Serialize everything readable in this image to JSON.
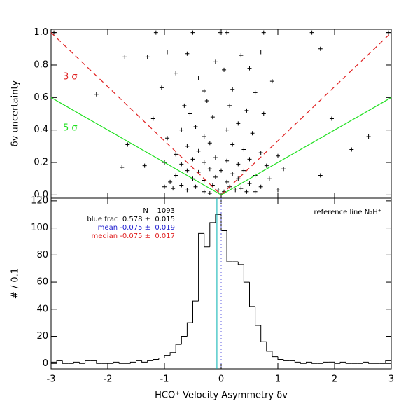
{
  "chart_data": [
    {
      "type": "scatter",
      "y_label": "δv uncertainty",
      "xlim": [
        -3,
        3
      ],
      "ylim": [
        -0.02,
        1.02
      ],
      "yticks": [
        {
          "value": 0,
          "label": "0.0"
        },
        0.2,
        0.4,
        0.6,
        0.8,
        {
          "value": 1,
          "label": "1.0"
        }
      ],
      "color": "#000000",
      "x": [
        -2.95,
        -1.15,
        -0.5,
        -0.02,
        0.1,
        0.75,
        1.6,
        2.95,
        -0.95,
        -1.3,
        -0.6,
        0.7,
        1.75,
        -0.1,
        0.35,
        -1.7,
        -0.8,
        -0.4,
        0.5,
        0.05,
        0.9,
        -2.2,
        -1.05,
        0.2,
        -0.3,
        0.6,
        -0.65,
        -0.25,
        0.15,
        0.45,
        -0.55,
        0.75,
        -1.2,
        1.95,
        -0.15,
        -0.45,
        0.3,
        -0.7,
        0.55,
        0.1,
        -0.3,
        2.6,
        -0.95,
        -0.6,
        -0.2,
        0.2,
        0.4,
        -0.4,
        0.7,
        -0.8,
        1.0,
        -1.65,
        2.3,
        -0.5,
        -0.3,
        -0.1,
        0.1,
        0.3,
        0.5,
        -0.7,
        0.8,
        -1.0,
        -1.35,
        1.1,
        -1.75,
        1.75,
        -0.6,
        -0.4,
        -0.2,
        0,
        0.2,
        0.4,
        0.6,
        -0.8,
        0.85,
        -0.9,
        -0.5,
        -0.3,
        -0.1,
        0.1,
        0.3,
        0.5,
        -0.7,
        0.7,
        -0.45,
        -0.15,
        0.15,
        0.35,
        -0.6,
        -0.3,
        -0.05,
        0.05,
        0.25,
        -0.2,
        0.45,
        -0.85,
        0.6,
        -1.0,
        1.0
      ],
      "values": [
        1,
        1,
        1,
        1,
        1,
        1,
        1,
        1,
        0.88,
        0.85,
        0.87,
        0.88,
        0.9,
        0.82,
        0.86,
        0.85,
        0.75,
        0.72,
        0.78,
        0.77,
        0.7,
        0.62,
        0.66,
        0.65,
        0.64,
        0.63,
        0.55,
        0.58,
        0.55,
        0.52,
        0.5,
        0.5,
        0.47,
        0.47,
        0.48,
        0.42,
        0.44,
        0.4,
        0.38,
        0.4,
        0.36,
        0.36,
        0.35,
        0.3,
        0.32,
        0.31,
        0.28,
        0.27,
        0.26,
        0.25,
        0.24,
        0.31,
        0.28,
        0.22,
        0.2,
        0.23,
        0.21,
        0.19,
        0.22,
        0.19,
        0.18,
        0.2,
        0.18,
        0.16,
        0.17,
        0.12,
        0.15,
        0.14,
        0.16,
        0.15,
        0.13,
        0.15,
        0.12,
        0.12,
        0.1,
        0.08,
        0.1,
        0.09,
        0.11,
        0.08,
        0.1,
        0.07,
        0.06,
        0.05,
        0.05,
        0.06,
        0.05,
        0.04,
        0.03,
        0.02,
        0.03,
        0.02,
        0.03,
        0.01,
        0.02,
        0.04,
        0.02,
        0.05,
        0.03
      ],
      "lines": [
        {
          "label": "3 σ",
          "color": "#e02020",
          "dashed": true,
          "x": [
            -3,
            0,
            3
          ],
          "y": [
            1,
            0,
            1
          ]
        },
        {
          "label": "5 σ",
          "color": "#20e020",
          "dashed": false,
          "x": [
            -3,
            0,
            3
          ],
          "y": [
            0.6,
            0,
            0.6
          ]
        }
      ]
    },
    {
      "type": "histogram",
      "x_label": "HCO⁺ Velocity Asymmetry δv",
      "y_label": "# / 0.1",
      "xlim": [
        -3,
        3
      ],
      "ylim": [
        -4,
        122
      ],
      "xticks": [
        -3,
        -2,
        -1,
        0,
        1,
        2,
        3
      ],
      "yticks": [
        0,
        20,
        40,
        60,
        80,
        100,
        120
      ],
      "color": "#000000",
      "bins": [
        -3,
        -2.9,
        -2.8,
        -2.7,
        -2.6,
        -2.5,
        -2.4,
        -2.3,
        -2.2,
        -2.1,
        -2,
        -1.9,
        -1.8,
        -1.7,
        -1.6,
        -1.5,
        -1.4,
        -1.3,
        -1.2,
        -1.1,
        -1,
        -0.9,
        -0.8,
        -0.7,
        -0.6,
        -0.5,
        -0.4,
        -0.3,
        -0.2,
        -0.1,
        0,
        0.1,
        0.2,
        0.3,
        0.4,
        0.5,
        0.6,
        0.7,
        0.8,
        0.9,
        1,
        1.1,
        1.2,
        1.3,
        1.4,
        1.5,
        1.6,
        1.7,
        1.8,
        1.9,
        2,
        2.1,
        2.2,
        2.3,
        2.4,
        2.5,
        2.6,
        2.7,
        2.8,
        2.9,
        3
      ],
      "values": [
        1,
        2,
        0,
        0,
        1,
        0,
        2,
        2,
        0,
        0,
        0,
        1,
        0,
        0,
        1,
        2,
        1,
        2,
        3,
        4,
        6,
        8,
        14,
        20,
        30,
        46,
        96,
        86,
        104,
        110,
        98,
        75,
        75,
        73,
        60,
        42,
        28,
        16,
        9,
        5,
        3,
        2,
        2,
        1,
        0,
        1,
        0,
        0,
        1,
        1,
        0,
        1,
        0,
        0,
        0,
        1,
        0,
        0,
        0,
        2
      ],
      "vlines": [
        {
          "x": -0.075,
          "color": "#00b0b0",
          "dashed": false
        },
        {
          "x": 0,
          "color": "#6060e0",
          "dashed": true
        }
      ],
      "annotations": [
        {
          "text": "N    1093",
          "color": "#000000"
        },
        {
          "text": "blue frac  0.578 ±  0.015",
          "color": "#000000"
        },
        {
          "text": "mean -0.075 ±  0.019",
          "color": "#2020d0"
        },
        {
          "text": "median -0.075 ±  0.017",
          "color": "#e02020"
        }
      ],
      "note": "reference line N₂H⁺"
    }
  ]
}
